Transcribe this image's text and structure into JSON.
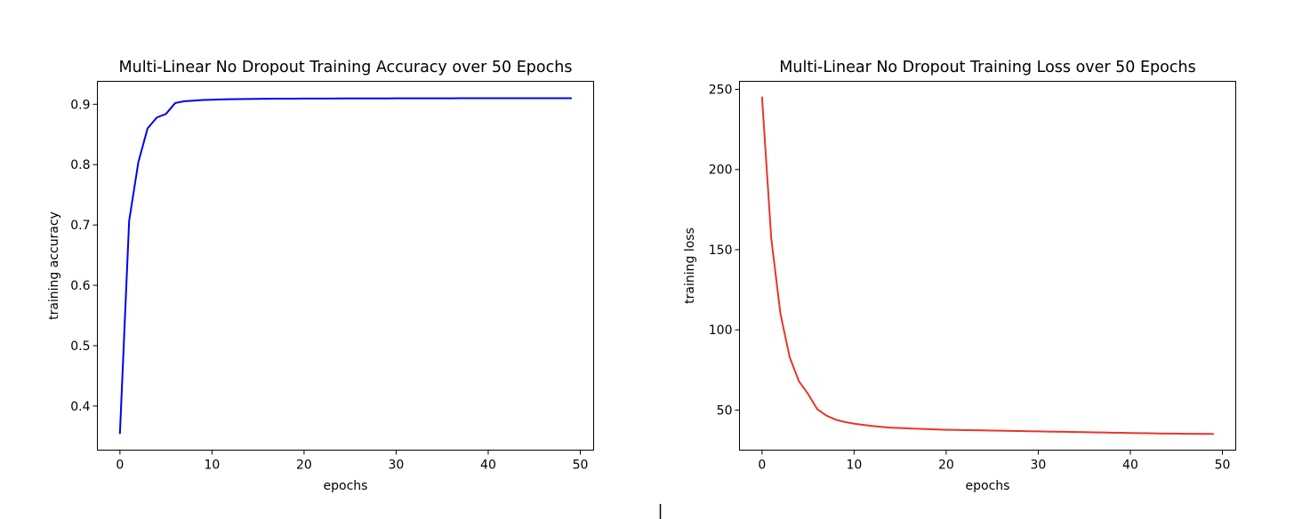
{
  "chart_data": [
    {
      "type": "line",
      "title": "Multi-Linear No Dropout Training Accuracy over 50 Epochs",
      "xlabel": "epochs",
      "ylabel": "training accuracy",
      "xlim": [
        -2.45,
        51.45
      ],
      "ylim": [
        0.327,
        0.938
      ],
      "xticks": [
        0,
        10,
        20,
        30,
        40,
        50
      ],
      "yticks": [
        0.4,
        0.5,
        0.6,
        0.7,
        0.8,
        0.9
      ],
      "ytick_labels": [
        "0.4",
        "0.5",
        "0.6",
        "0.7",
        "0.8",
        "0.9"
      ],
      "grid": false,
      "series": [
        {
          "color": "#0000ee",
          "x": [
            0,
            1,
            2,
            3,
            4,
            5,
            6,
            7,
            8,
            9,
            10,
            11,
            12,
            13,
            14,
            15,
            16,
            17,
            18,
            19,
            20,
            21,
            22,
            23,
            24,
            25,
            26,
            27,
            28,
            29,
            30,
            31,
            32,
            33,
            34,
            35,
            36,
            37,
            38,
            39,
            40,
            41,
            42,
            43,
            44,
            45,
            46,
            47,
            48,
            49
          ],
          "y": [
            0.355,
            0.707,
            0.804,
            0.86,
            0.878,
            0.884,
            0.902,
            0.905,
            0.906,
            0.907,
            0.9075,
            0.908,
            0.9083,
            0.9086,
            0.9088,
            0.909,
            0.9091,
            0.9092,
            0.9093,
            0.9093,
            0.9094,
            0.9094,
            0.9095,
            0.9095,
            0.9096,
            0.9096,
            0.9096,
            0.9097,
            0.9097,
            0.9097,
            0.9098,
            0.9098,
            0.9098,
            0.9099,
            0.9099,
            0.9099,
            0.9099,
            0.91,
            0.91,
            0.91,
            0.91,
            0.91,
            0.91,
            0.91,
            0.91,
            0.91,
            0.91,
            0.91,
            0.91,
            0.91
          ]
        }
      ]
    },
    {
      "type": "line",
      "title": "Multi-Linear No Dropout Training Loss over 50 Epochs",
      "xlabel": "epochs",
      "ylabel": "training loss",
      "xlim": [
        -2.45,
        51.45
      ],
      "ylim": [
        25,
        255
      ],
      "xticks": [
        0,
        10,
        20,
        30,
        40,
        50
      ],
      "yticks": [
        50,
        100,
        150,
        200,
        250
      ],
      "ytick_labels": [
        "50",
        "100",
        "150",
        "200",
        "250"
      ],
      "grid": false,
      "series": [
        {
          "color": "#e8352a",
          "x": [
            0,
            1,
            2,
            3,
            4,
            5,
            6,
            7,
            8,
            9,
            10,
            11,
            12,
            13,
            14,
            15,
            16,
            17,
            18,
            19,
            20,
            21,
            22,
            23,
            24,
            25,
            26,
            27,
            28,
            29,
            30,
            31,
            32,
            33,
            34,
            35,
            36,
            37,
            38,
            39,
            40,
            41,
            42,
            43,
            44,
            45,
            46,
            47,
            48,
            49
          ],
          "y": [
            245,
            157,
            110,
            83,
            68,
            60,
            50.5,
            46.5,
            44,
            42.5,
            41.5,
            40.7,
            40,
            39.5,
            39,
            38.8,
            38.5,
            38.3,
            38.1,
            37.9,
            37.7,
            37.6,
            37.5,
            37.4,
            37.3,
            37.2,
            37.1,
            37.0,
            36.9,
            36.8,
            36.7,
            36.6,
            36.5,
            36.4,
            36.3,
            36.2,
            36.1,
            36.0,
            35.9,
            35.8,
            35.7,
            35.6,
            35.5,
            35.4,
            35.3,
            35.3,
            35.2,
            35.2,
            35.1,
            35.1
          ]
        }
      ]
    }
  ]
}
